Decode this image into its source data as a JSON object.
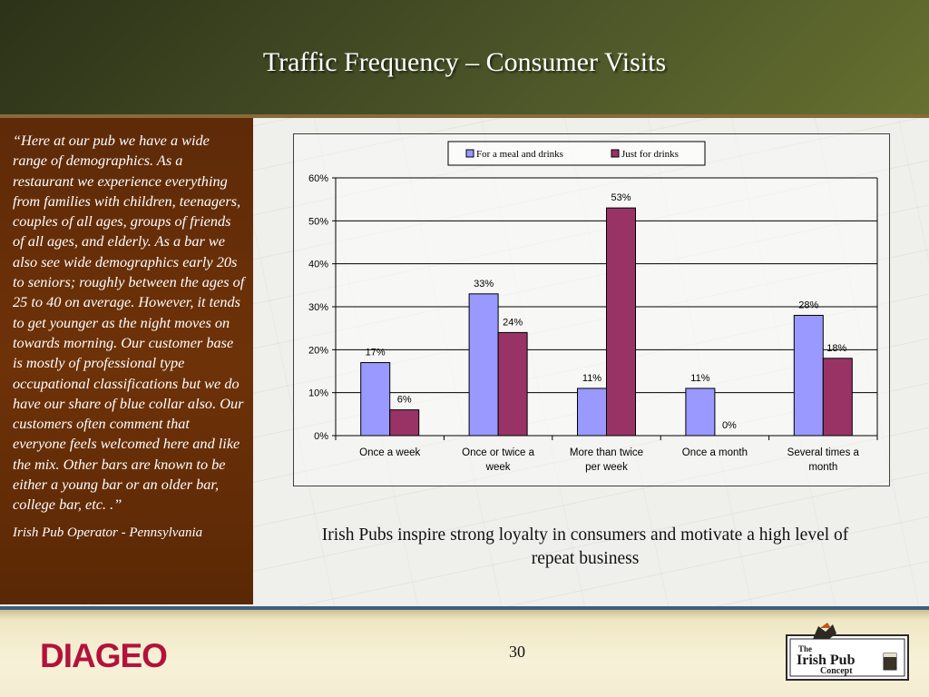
{
  "slide": {
    "title": "Traffic Frequency – Consumer Visits",
    "page_number": "30",
    "caption": "Irish Pubs inspire strong loyalty in consumers and motivate a high level of repeat business"
  },
  "quote": {
    "text": "“Here at our pub we have a wide range of demographics. As a restaurant we experience everything from families with children, teenagers, couples of all ages, groups of friends of all ages, and elderly. As a bar we also see wide demographics early 20s to seniors; roughly between the ages of 25 to 40 on average. However, it tends to get younger as the night moves on towards morning. Our customer base is mostly of professional type occupational classifications but we do have our share of blue collar also. Our customers often comment that everyone feels welcomed here and like the mix. Other bars are known to be either a young bar or an older bar, college bar, etc. .”",
    "attribution": "Irish Pub Operator - Pennsylvania"
  },
  "logos": {
    "diageo": "DIAGEO",
    "irish_pub_the": "The",
    "irish_pub_name": "Irish Pub",
    "irish_pub_concept": "Concept"
  },
  "colors": {
    "series_meal": "#9999ff",
    "series_drinks": "#993366",
    "diageo_red": "#b3123a"
  },
  "chart_data": {
    "type": "bar",
    "categories": [
      [
        "Once a week"
      ],
      [
        "Once or twice a",
        "week"
      ],
      [
        "More than twice",
        "per week"
      ],
      [
        "Once a month"
      ],
      [
        "Several times a",
        "month"
      ]
    ],
    "series": [
      {
        "name": "For a meal and drinks",
        "values": [
          17,
          33,
          11,
          11,
          28
        ],
        "labels": [
          "17%",
          "33%",
          "11%",
          "11%",
          "28%"
        ],
        "color": "#9999ff"
      },
      {
        "name": "Just for drinks",
        "values": [
          6,
          24,
          53,
          0,
          18
        ],
        "labels": [
          "6%",
          "24%",
          "53%",
          "0%",
          "18%"
        ],
        "color": "#993366"
      }
    ],
    "ylim": [
      0,
      60
    ],
    "yticks": [
      0,
      10,
      20,
      30,
      40,
      50,
      60
    ],
    "ytick_labels": [
      "0%",
      "10%",
      "20%",
      "30%",
      "40%",
      "50%",
      "60%"
    ],
    "grid": true,
    "legend_position": "top"
  }
}
